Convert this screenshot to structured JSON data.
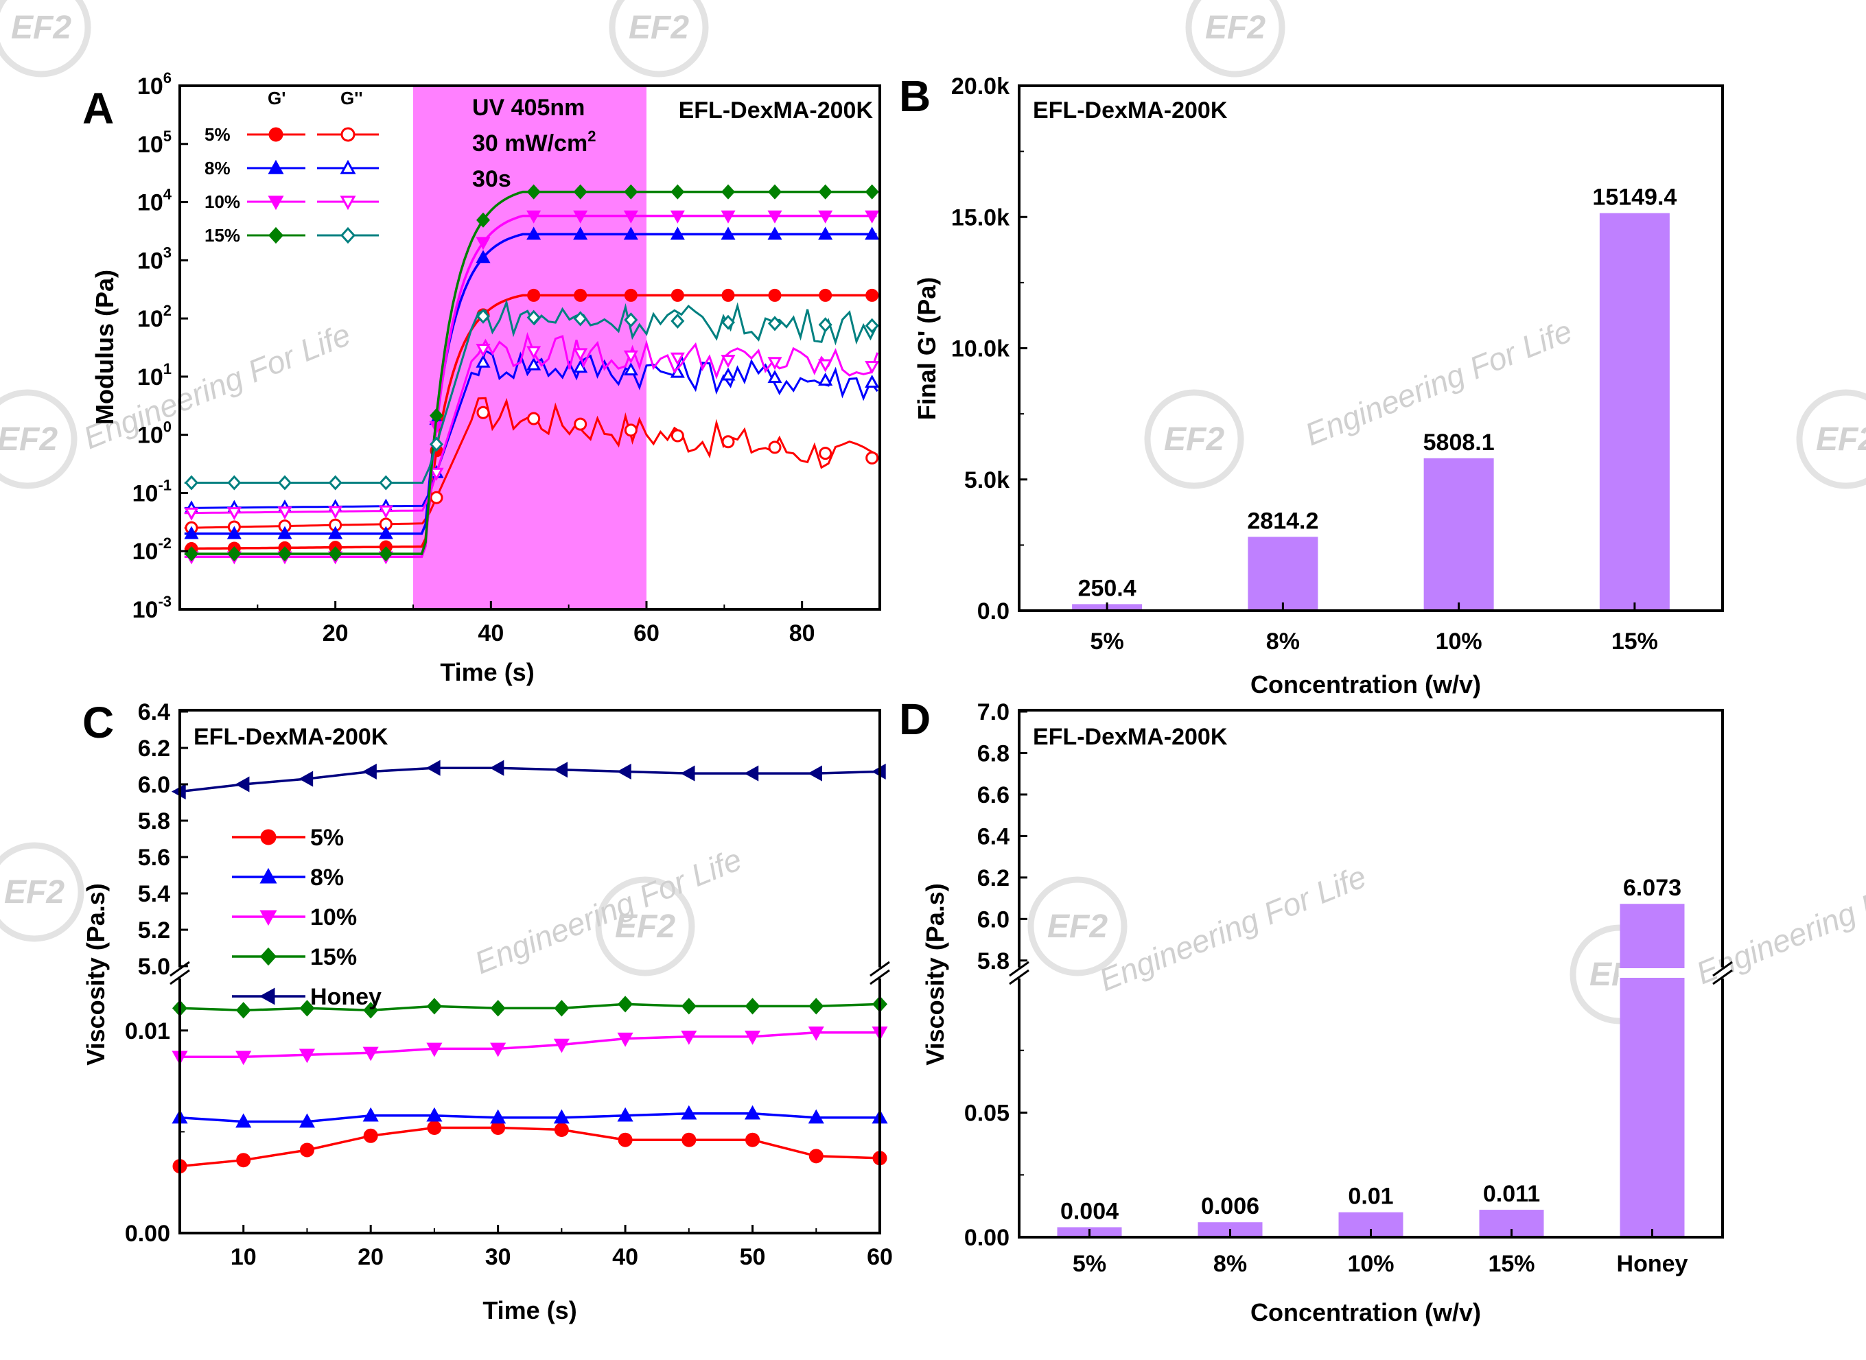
{
  "watermark": {
    "logo_text": "EF2",
    "tagline": "Engineering For Life"
  },
  "chart_data": [
    {
      "panel": "A",
      "type": "line",
      "title": "EFL-DexMA-200K",
      "xlabel": "Time (s)",
      "ylabel": "Modulus (Pa)",
      "xlim": [
        0,
        90
      ],
      "ylim": [
        0.001,
        1000000
      ],
      "yscale": "log",
      "xticks": [
        "20",
        "40",
        "60",
        "80"
      ],
      "yticks_exp": [
        "-3",
        "-2",
        "-1",
        "0",
        "1",
        "2",
        "3",
        "4",
        "5",
        "6"
      ],
      "ytick_base": "10",
      "annotation": {
        "line1": "UV 405nm",
        "line2": "30 mW/cm",
        "line2_sup": "2",
        "line3": "30s",
        "shade_x": [
          30,
          60
        ],
        "color": "#ff80ff"
      },
      "legend": {
        "header_storage": "G'",
        "header_loss": "G''",
        "placement": "top-left"
      },
      "series": [
        {
          "name": "5%",
          "color": "#ff0000",
          "marker": "circle",
          "G_storage_plateaus": [
            0.011,
            0.012,
            250
          ],
          "G_loss_plateaus": [
            0.025,
            0.03,
            2.5,
            0.4
          ]
        },
        {
          "name": "8%",
          "color": "#0000ff",
          "marker": "triangle-up",
          "G_storage_plateaus": [
            0.02,
            0.02,
            2800
          ],
          "G_loss_plateaus": [
            0.055,
            0.06,
            18,
            8
          ]
        },
        {
          "name": "10%",
          "color": "#ff00ff",
          "marker": "triangle-down",
          "G_storage_plateaus": [
            0.008,
            0.008,
            5800
          ],
          "G_loss_plateaus": [
            0.045,
            0.05,
            30,
            15
          ]
        },
        {
          "name": "15%",
          "color": "#008000",
          "marker": "diamond",
          "G_storage_plateaus": [
            0.009,
            0.009,
            15000
          ],
          "G_loss_color": "#008080",
          "G_loss_plateaus": [
            0.15,
            0.15,
            110,
            75
          ]
        }
      ]
    },
    {
      "panel": "B",
      "type": "bar",
      "title": "EFL-DexMA-200K",
      "xlabel": "Concentration (w/v)",
      "ylabel": "Final G' (Pa)",
      "ylim": [
        0,
        20000
      ],
      "yticks": [
        "0.0",
        "5.0k",
        "10.0k",
        "15.0k",
        "20.0k"
      ],
      "categories": [
        "5%",
        "8%",
        "10%",
        "15%"
      ],
      "values": [
        250.4,
        2814.2,
        5808.1,
        15149.4
      ],
      "data_labels": [
        "250.4",
        "2814.2",
        "5808.1",
        "15149.4"
      ],
      "color": "#bf80ff"
    },
    {
      "panel": "C",
      "type": "line",
      "title": "EFL-DexMA-200K",
      "xlabel": "Time (s)",
      "ylabel": "Viscosity (Pa.s)",
      "xlim": [
        5,
        60
      ],
      "ylim_lower": [
        0,
        0.0125
      ],
      "ylim_upper": [
        5.0,
        6.4
      ],
      "axis_break": true,
      "xticks": [
        "10",
        "20",
        "30",
        "40",
        "50",
        "60"
      ],
      "yticks_lower": [
        "0.00",
        "0.01"
      ],
      "yticks_upper": [
        "5.0",
        "5.2",
        "5.4",
        "5.6",
        "5.8",
        "6.0",
        "6.2",
        "6.4"
      ],
      "legend_placement": "left",
      "x": [
        5,
        10,
        15,
        20,
        25,
        30,
        35,
        40,
        45,
        50,
        55,
        60
      ],
      "series": [
        {
          "name": "5%",
          "color": "#ff0000",
          "marker": "circle",
          "values": [
            0.0033,
            0.0036,
            0.0041,
            0.0048,
            0.0052,
            0.0052,
            0.0051,
            0.0046,
            0.0046,
            0.0046,
            0.0038,
            0.0037
          ]
        },
        {
          "name": "8%",
          "color": "#0000ff",
          "marker": "triangle-up",
          "values": [
            0.0057,
            0.0055,
            0.0055,
            0.0058,
            0.0058,
            0.0057,
            0.0057,
            0.0058,
            0.0059,
            0.0059,
            0.0057,
            0.0057
          ]
        },
        {
          "name": "10%",
          "color": "#ff00ff",
          "marker": "triangle-down",
          "values": [
            0.0087,
            0.0087,
            0.0088,
            0.0089,
            0.0091,
            0.0091,
            0.0093,
            0.0096,
            0.0097,
            0.0097,
            0.0099,
            0.0099
          ]
        },
        {
          "name": "15%",
          "color": "#008000",
          "marker": "diamond",
          "values": [
            0.0111,
            0.011,
            0.0111,
            0.011,
            0.0112,
            0.0111,
            0.0111,
            0.0113,
            0.0112,
            0.0112,
            0.0112,
            0.0113
          ]
        },
        {
          "name": "Honey",
          "color": "#000080",
          "marker": "triangle-left",
          "values": [
            5.96,
            6.0,
            6.03,
            6.07,
            6.09,
            6.09,
            6.08,
            6.07,
            6.06,
            6.06,
            6.06,
            6.07
          ]
        }
      ]
    },
    {
      "panel": "D",
      "type": "bar",
      "title": "EFL-DexMA-200K",
      "xlabel": "Concentration (w/v)",
      "ylabel": "Viscosity (Pa.s)",
      "ylim_lower": [
        0,
        0.1
      ],
      "ylim_upper": [
        5.7,
        7.0
      ],
      "axis_break": true,
      "yticks_lower": [
        "0.00",
        "0.05"
      ],
      "yticks_upper": [
        "5.8",
        "6.0",
        "6.2",
        "6.4",
        "6.6",
        "6.8",
        "7.0"
      ],
      "categories": [
        "5%",
        "8%",
        "10%",
        "15%",
        "Honey"
      ],
      "values": [
        0.004,
        0.006,
        0.01,
        0.011,
        6.073
      ],
      "data_labels": [
        "0.004",
        "0.006",
        "0.01",
        "0.011",
        "6.073"
      ],
      "color": "#bf80ff"
    }
  ]
}
